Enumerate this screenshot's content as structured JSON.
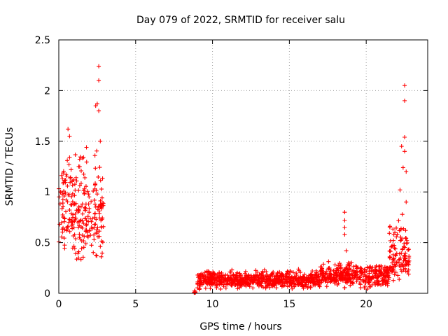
{
  "chart_data": {
    "type": "scatter",
    "title": "Day 079 of 2022, SRMTID for receiver salu",
    "xlabel": "GPS time / hours",
    "ylabel": "SRMTID / TECUs",
    "xlim": [
      0,
      24
    ],
    "ylim": [
      0,
      2.5
    ],
    "xticks": [
      0,
      5,
      10,
      15,
      20
    ],
    "xtick_labels": [
      "0",
      "5",
      "10",
      "15",
      "20"
    ],
    "yticks": [
      0,
      0.5,
      1,
      1.5,
      2,
      2.5
    ],
    "ytick_labels": [
      "0",
      "0.5",
      "1",
      "1.5",
      "2",
      "2.5"
    ],
    "grid": true,
    "marker": "+",
    "color": "#ff0000",
    "series": [
      {
        "name": "SRMTID",
        "segments": [
          {
            "x_start": 0.0,
            "x_end": 2.9,
            "y_min": 0.2,
            "y_max": 1.65,
            "typical": 0.75
          },
          {
            "x_start": 8.8,
            "x_end": 8.9,
            "y_min": 0.0,
            "y_max": 0.03,
            "typical": 0.01
          },
          {
            "x_start": 9.0,
            "x_end": 17.0,
            "y_min": 0.03,
            "y_max": 0.25,
            "typical": 0.13
          },
          {
            "x_start": 17.0,
            "x_end": 21.5,
            "y_min": 0.03,
            "y_max": 0.35,
            "typical": 0.17
          },
          {
            "x_start": 21.5,
            "x_end": 22.8,
            "y_min": 0.05,
            "y_max": 0.9,
            "typical": 0.35
          }
        ],
        "outliers": [
          {
            "x": 2.6,
            "y": 2.24
          },
          {
            "x": 2.6,
            "y": 2.1
          },
          {
            "x": 2.5,
            "y": 1.87
          },
          {
            "x": 2.4,
            "y": 1.85
          },
          {
            "x": 2.6,
            "y": 1.8
          },
          {
            "x": 0.6,
            "y": 1.62
          },
          {
            "x": 0.7,
            "y": 1.55
          },
          {
            "x": 1.8,
            "y": 1.44
          },
          {
            "x": 0.7,
            "y": 1.34
          },
          {
            "x": 0.8,
            "y": 1.22
          },
          {
            "x": 2.7,
            "y": 1.5
          },
          {
            "x": 18.6,
            "y": 0.8
          },
          {
            "x": 18.6,
            "y": 0.72
          },
          {
            "x": 18.6,
            "y": 0.65
          },
          {
            "x": 18.6,
            "y": 0.58
          },
          {
            "x": 18.7,
            "y": 0.42
          },
          {
            "x": 22.5,
            "y": 2.05
          },
          {
            "x": 22.5,
            "y": 1.9
          },
          {
            "x": 22.5,
            "y": 1.54
          },
          {
            "x": 22.5,
            "y": 1.4
          },
          {
            "x": 22.3,
            "y": 1.45
          },
          {
            "x": 22.4,
            "y": 1.24
          },
          {
            "x": 22.6,
            "y": 1.2
          },
          {
            "x": 22.2,
            "y": 1.02
          },
          {
            "x": 22.6,
            "y": 0.9
          }
        ]
      }
    ]
  }
}
